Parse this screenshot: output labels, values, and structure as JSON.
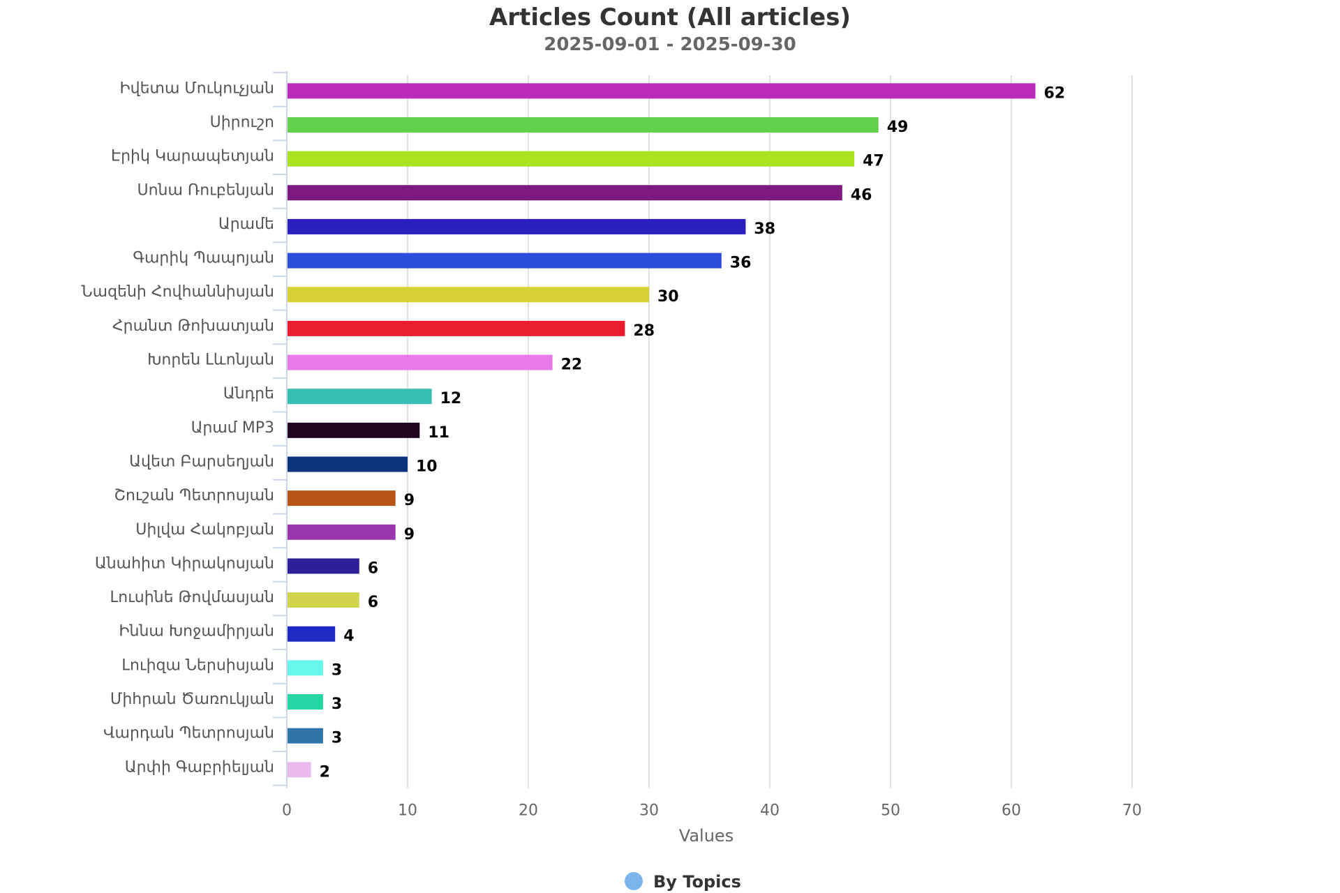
{
  "chart_data": {
    "type": "bar",
    "orientation": "horizontal",
    "title": "Articles Count (All articles)",
    "subtitle": "2025-09-01 - 2025-09-30",
    "xlabel": "Values",
    "ylabel": "",
    "xlim": [
      0,
      70
    ],
    "x_ticks": [
      0,
      10,
      20,
      30,
      40,
      50,
      60,
      70
    ],
    "grid": true,
    "legend_position": "bottom-center",
    "categories": [
      "Իվետա Մուկուչյան",
      "Սիրուշո",
      "Էրիկ Կարապետյան",
      "Սոնա Ռուբենյան",
      "Արամե",
      "Գարիկ Պապոյան",
      "Նազենի Հովհաննիսյան",
      "Հրանտ Թոխատյան",
      "Խորեն Լևոնյան",
      "Անդրե",
      "Արամ MP3",
      "Ավետ Բարսեղյան",
      "Շուշան Պետրոսյան",
      "Սիլվա Հակոբյան",
      "Անահիտ Կիրակոսյան",
      "Լուսինե Թովմասյան",
      "Իննա Խոջամիրյան",
      "Լուիզա Ներսիսյան",
      "Միհրան Ծառուկյան",
      "Վարդան Պետրոսյան",
      "Արփի Գաբրիելյան"
    ],
    "series": [
      {
        "name": "By Topics",
        "legend_color": "#7cb5ec",
        "values": [
          62,
          49,
          47,
          46,
          38,
          36,
          30,
          28,
          22,
          12,
          11,
          10,
          9,
          9,
          6,
          6,
          4,
          3,
          3,
          3,
          2
        ],
        "colors": [
          "#bb2bbb",
          "#62d04b",
          "#a9e31f",
          "#7d1a7f",
          "#2c1fbf",
          "#2d4ddb",
          "#d6d233",
          "#e91c30",
          "#e879e8",
          "#35bfb3",
          "#200420",
          "#0e357a",
          "#b75416",
          "#9a36ad",
          "#2f1e99",
          "#d3d44d",
          "#1d29c2",
          "#66f7ed",
          "#23d6a2",
          "#2f74a9",
          "#eab9eb"
        ]
      }
    ]
  }
}
